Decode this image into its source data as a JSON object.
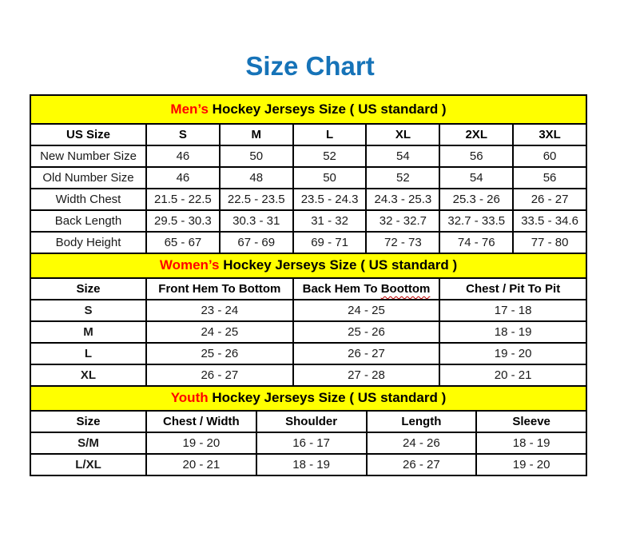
{
  "page": {
    "title": "Size Chart"
  },
  "colors": {
    "title_blue": "#1673B8",
    "header_yellow": "#FFFF00",
    "accent_red": "#FF0000",
    "squiggle_red": "#C00000",
    "border_black": "#000000"
  },
  "tables": [
    {
      "id": "mens",
      "caption": {
        "highlight": "Men’s",
        "rest": " Hockey Jerseys Size ( US standard )"
      },
      "columns": [
        {
          "label": "US Size"
        },
        {
          "label": "S"
        },
        {
          "label": "M"
        },
        {
          "label": "L"
        },
        {
          "label": "XL"
        },
        {
          "label": "2XL"
        },
        {
          "label": "3XL"
        }
      ],
      "rows": [
        {
          "label": "New Number Size",
          "values": [
            "46",
            "50",
            "52",
            "54",
            "56",
            "60"
          ]
        },
        {
          "label": "Old Number Size",
          "values": [
            "46",
            "48",
            "50",
            "52",
            "54",
            "56"
          ]
        },
        {
          "label": "Width Chest",
          "values": [
            "21.5 - 22.5",
            "22.5 - 23.5",
            "23.5 - 24.3",
            "24.3 - 25.3",
            "25.3 - 26",
            "26 - 27"
          ]
        },
        {
          "label": "Back Length",
          "values": [
            "29.5 - 30.3",
            "30.3 - 31",
            "31 - 32",
            "32 - 32.7",
            "32.7 - 33.5",
            "33.5 - 34.6"
          ]
        },
        {
          "label": "Body Height",
          "values": [
            "65 - 67",
            "67 - 69",
            "69 - 71",
            "72 - 73",
            "74 - 76",
            "77 - 80"
          ]
        }
      ]
    },
    {
      "id": "womens",
      "caption": {
        "highlight": "Women’s",
        "rest": " Hockey Jerseys Size ( US standard )"
      },
      "columns": [
        {
          "label": "Size"
        },
        {
          "label": "Front Hem To Bottom"
        },
        {
          "label": "Back Hem To",
          "squiggle_word": "Boottom"
        },
        {
          "label": "Chest / Pit To Pit"
        }
      ],
      "rows": [
        {
          "label": "S",
          "values": [
            "23 - 24",
            "24 - 25",
            "17 - 18"
          ]
        },
        {
          "label": "M",
          "values": [
            "24 - 25",
            "25 - 26",
            "18 - 19"
          ]
        },
        {
          "label": "L",
          "values": [
            "25 - 26",
            "26 - 27",
            "19 - 20"
          ]
        },
        {
          "label": "XL",
          "values": [
            "26 - 27",
            "27 - 28",
            "20 - 21"
          ]
        }
      ]
    },
    {
      "id": "youth",
      "caption": {
        "highlight": "Youth",
        "rest": " Hockey Jerseys Size ( US standard )"
      },
      "columns": [
        {
          "label": "Size"
        },
        {
          "label": "Chest / Width"
        },
        {
          "label": "Shoulder"
        },
        {
          "label": "Length"
        },
        {
          "label": "Sleeve"
        }
      ],
      "rows": [
        {
          "label": "S/M",
          "values": [
            "19 - 20",
            "16 - 17",
            "24 - 26",
            "18 - 19"
          ]
        },
        {
          "label": "L/XL",
          "values": [
            "20 - 21",
            "18 - 19",
            "26 - 27",
            "19 - 20"
          ]
        }
      ]
    }
  ]
}
